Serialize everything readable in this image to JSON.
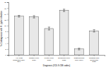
{
  "chart_data": {
    "type": "bar",
    "categories": [
      "Any PUD\ndiagnosis (531-\n534)",
      "Gastric ulcer\n(531)",
      "Peptic ulcer\n(533)",
      "Duodenal ulcer\n(532)",
      "Gastrojejunal\nulcer (534)",
      "Gastritis and\nduodenitis\n(535)"
    ],
    "values": [
      13.2,
      13.0,
      9.0,
      15.2,
      2.0,
      8.2
    ],
    "errors": [
      0.3,
      0.4,
      0.5,
      0.4,
      0.3,
      0.4
    ],
    "color": "#e8e8e8",
    "ylabel": "% Codiagnosis with H. pylori infection",
    "xlabel": "Diagnosis (ICD-9-CM codes)",
    "ylim": [
      0,
      18
    ],
    "yticks": [
      0,
      2,
      4,
      6,
      8,
      10,
      12,
      14,
      16,
      18
    ]
  }
}
